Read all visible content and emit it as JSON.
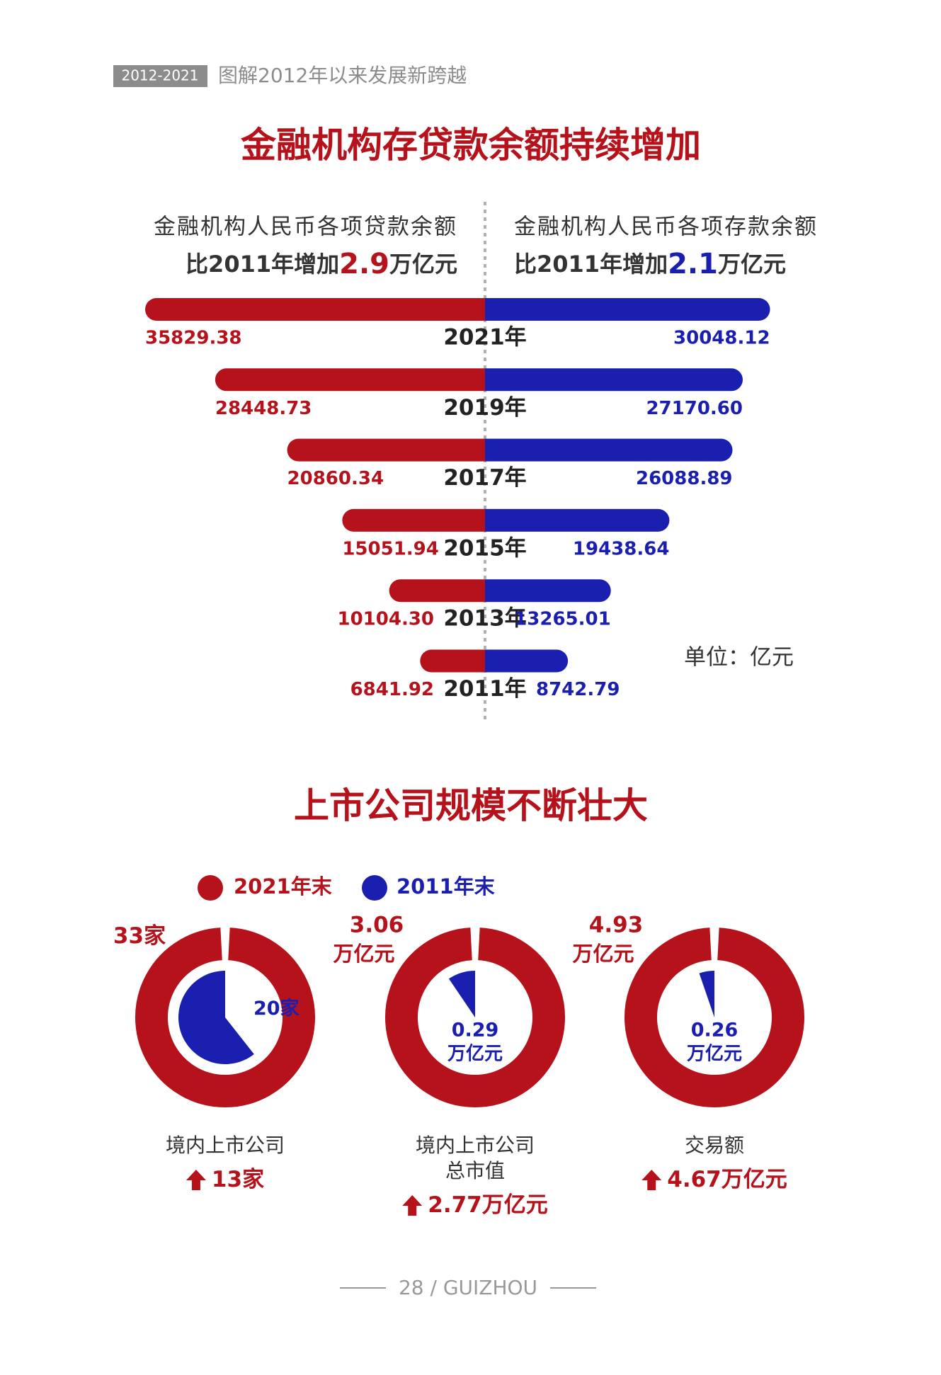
{
  "header": {
    "tag": "2012-2021",
    "title": "图解2012年以来发展新跨越"
  },
  "chart_data": [
    {
      "type": "butterfly",
      "title": "金融机构存贷款余额持续增加",
      "categories": [
        "2021年",
        "2019年",
        "2017年",
        "2015年",
        "2013年",
        "2011年"
      ],
      "series": [
        {
          "name": "金融机构人民币各项贷款余额",
          "subtitle_parts": [
            "比2011年增加",
            "2.9",
            "万亿元"
          ],
          "color": "#b5121b",
          "values": [
            35829.38,
            28448.73,
            20860.34,
            15051.94,
            10104.3,
            6841.92
          ],
          "value_labels": [
            "35829.38",
            "28448.73",
            "20860.34",
            "15051.94",
            "10104.30",
            "6841.92"
          ]
        },
        {
          "name": "金融机构人民币各项存款余额",
          "subtitle_parts": [
            "比2011年增加",
            "2.1",
            "万亿元"
          ],
          "color": "#1a1fb0",
          "values": [
            30048.12,
            27170.6,
            26088.89,
            19438.64,
            13265.01,
            8742.79
          ],
          "value_labels": [
            "30048.12",
            "27170.60",
            "26088.89",
            "19438.64",
            "13265.01",
            "8742.79"
          ]
        }
      ],
      "unit": "单位：亿元"
    },
    {
      "type": "donut",
      "title": "上市公司规模不断壮大",
      "categories": [
        [
          "境内上市公司"
        ],
        [
          "境内上市公司",
          "总市值"
        ],
        [
          "交易额"
        ]
      ],
      "units": [
        "家",
        "万亿元",
        "万亿元"
      ],
      "series": [
        {
          "name": "2021年末",
          "color": "#b5121b",
          "values": [
            33,
            3.06,
            4.93
          ]
        },
        {
          "name": "2011年末",
          "color": "#1a1fb0",
          "values": [
            20,
            0.29,
            0.26
          ]
        }
      ],
      "increase": {
        "values": [
          13,
          2.77,
          4.67
        ]
      }
    }
  ],
  "footer": "28 / GUIZHOU"
}
